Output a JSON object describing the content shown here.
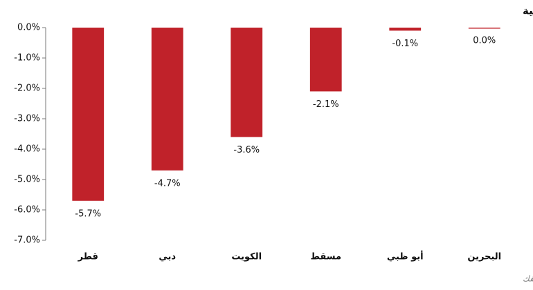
{
  "chart_data": {
    "type": "bar",
    "title": "التغير الأسبوعي لمؤشرات أسواق الأسهم الخليجية",
    "source": "المصدر: إدارة البحوث - كميفك",
    "categories": [
      "قطر",
      "دبي",
      "الكويت",
      "مسقط",
      "أبو ظبي",
      "البحرين"
    ],
    "values": [
      -5.7,
      -4.7,
      -3.6,
      -2.1,
      -0.1,
      0.0
    ],
    "value_labels": [
      "-5.7%",
      "-4.7%",
      "-3.6%",
      "-2.1%",
      "-0.1%",
      "0.0%"
    ],
    "color": "#c0222a",
    "ylim": [
      -7,
      0
    ],
    "yticks": [
      {
        "value": 0,
        "label": "0.0%"
      },
      {
        "value": -1,
        "label": "-1.0%"
      },
      {
        "value": -2,
        "label": "-2.0%"
      },
      {
        "value": -3,
        "label": "-3.0%"
      },
      {
        "value": -4,
        "label": "-4.0%"
      },
      {
        "value": -5,
        "label": "-5.0%"
      },
      {
        "value": -6,
        "label": "-6.0%"
      },
      {
        "value": -7,
        "label": "-7.0%"
      }
    ],
    "grid": false
  }
}
